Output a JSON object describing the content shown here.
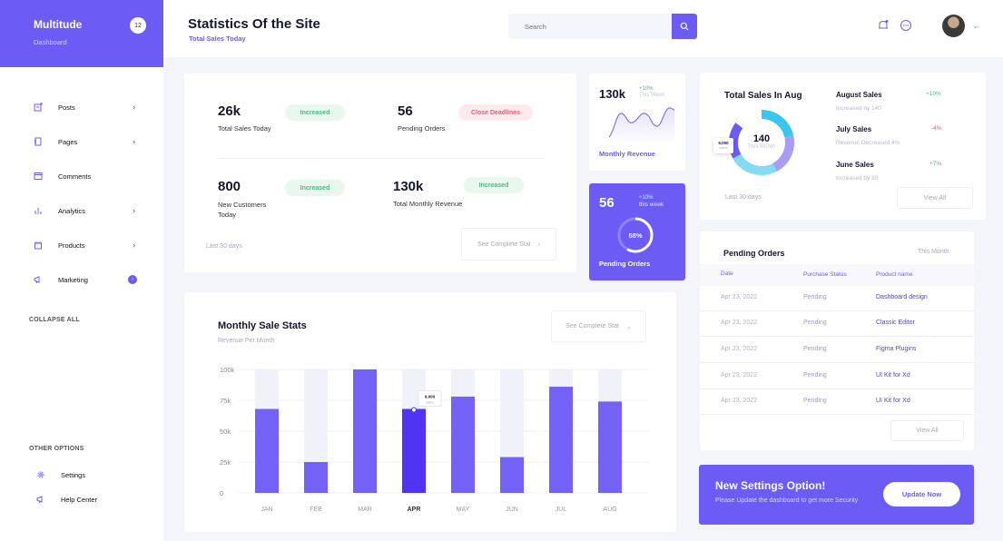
{
  "sidebar": {
    "brand": "Multitude",
    "brand_sub": "Dashboard",
    "badge": "12",
    "items": [
      {
        "label": "Posts",
        "icon": "posts-icon"
      },
      {
        "label": "Pages",
        "icon": "pages-icon"
      },
      {
        "label": "Comments",
        "icon": "comments-icon"
      },
      {
        "label": "Analytics",
        "icon": "analytics-icon"
      },
      {
        "label": "Products",
        "icon": "products-icon"
      },
      {
        "label": "Marketing",
        "icon": "marketing-icon"
      }
    ],
    "collapse": "COLLAPSE ALL",
    "other_label": "OTHER OPTIONS",
    "other_items": [
      {
        "label": "Settings",
        "icon": "gear-icon"
      },
      {
        "label": "Help Center",
        "icon": "megaphone-icon"
      }
    ]
  },
  "header": {
    "title": "Statistics Of the Site",
    "subtitle": "Total Sales Today",
    "search_placeholder": "Search"
  },
  "stats": {
    "items": [
      {
        "value": "26k",
        "label": "Total Sales Today",
        "pill": "Increased"
      },
      {
        "value": "56",
        "label": "Pending Orders",
        "pill": "Close Deadlines"
      },
      {
        "value": "800",
        "label": "New Customers Today",
        "pill": "Increased"
      },
      {
        "value": "130k",
        "label": "Total Monthly Revenue",
        "pill": "Increased"
      }
    ],
    "footer": "Last 30 days",
    "button": "See Complete Stat"
  },
  "revenue": {
    "value": "130k",
    "change": "+10%",
    "change_sub": "This Week",
    "label": "Monthly Revenue"
  },
  "pending": {
    "value": "56",
    "change": "+10%",
    "change_sub": "this week",
    "percent": "58%",
    "progress": 0.58,
    "label": "Pending Orders"
  },
  "total_sales": {
    "title": "Total Sales In Aug",
    "center_value": "140",
    "center_sub": "This Month",
    "tooltip_value": "9,000",
    "tooltip_sub": "sales",
    "footer": "Last 30 days",
    "button": "View All",
    "months": [
      {
        "name": "August Sales",
        "change": "+10%",
        "note": "Increased by 140",
        "color": "#4db87a"
      },
      {
        "name": "July Sales",
        "change": "-4%",
        "note": "Revenue Decreased 4%",
        "color": "#e45b72"
      },
      {
        "name": "June Sales",
        "change": "+7%",
        "note": "Increased by 30",
        "color": "#4db87a"
      }
    ]
  },
  "orders": {
    "title": "Pending Orders",
    "period": "This Month",
    "columns": [
      "Date",
      "Purchase Status",
      "Product name"
    ],
    "rows": [
      [
        "Apr 23, 2022",
        "Pending",
        "Dashboard design"
      ],
      [
        "Apr 23, 2022",
        "Pending",
        "Classic Editor"
      ],
      [
        "Apr 23, 2022",
        "Pending",
        "Figma Plugins"
      ],
      [
        "Apr 23, 2022",
        "Pending",
        "UI Kit for Xd"
      ],
      [
        "Apr 23, 2022",
        "Pending",
        "UI Kit for Xd"
      ]
    ],
    "button": "View All"
  },
  "banner": {
    "title": "New Settings Option!",
    "text": "Please Update the dashboard to get more Security",
    "button": "Update Now"
  },
  "chart_panel": {
    "title": "Monthly Sale Stats",
    "subtitle": "Revenue Per Month",
    "button": "See Complete Stat"
  },
  "chart_data": {
    "type": "bar",
    "categories": [
      "JAN",
      "FEB",
      "MAR",
      "APR",
      "MAY",
      "JUN",
      "JUL",
      "AUG"
    ],
    "values": [
      68000,
      25000,
      100000,
      68000,
      78000,
      29000,
      86000,
      74000
    ],
    "ylim": [
      0,
      100000
    ],
    "yticks": [
      "0",
      "25k",
      "50k",
      "75k",
      "100k"
    ],
    "highlight_index": 3,
    "tooltip": {
      "value": "9,000",
      "sub": "sales"
    },
    "colors": {
      "bar": "#7461f5",
      "highlight": "#5033f3",
      "track": "#f1f1fa"
    }
  }
}
